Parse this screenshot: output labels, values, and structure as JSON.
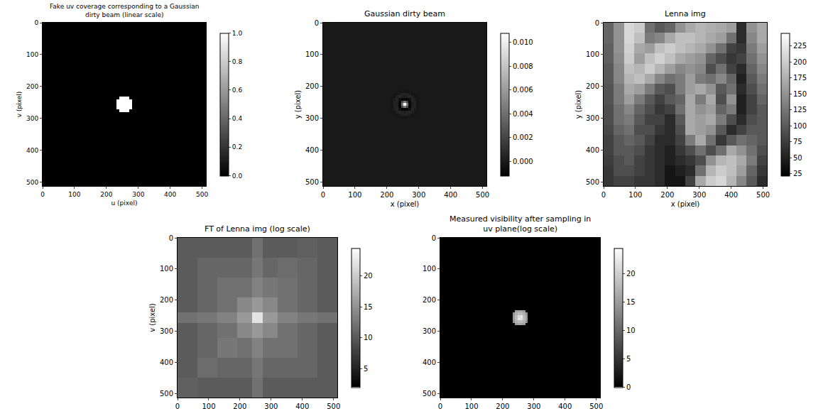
{
  "chart_data": [
    {
      "type": "heatmap",
      "title": "Fake uv coverage corresponding to a Gaussian dirty beam (linear scale)",
      "x_label": "u (pixel)",
      "y_label": "v (pixel)",
      "color": "gray",
      "xlim": [
        0,
        512
      ],
      "ylim": [
        512,
        0
      ],
      "xticks": [
        0,
        100,
        200,
        300,
        400,
        500
      ],
      "yticks": [
        0,
        100,
        200,
        300,
        400,
        500
      ],
      "x": [
        0,
        232,
        240,
        248,
        256,
        264,
        272,
        280,
        512
      ],
      "y": [
        0,
        232,
        240,
        248,
        256,
        264,
        272,
        280,
        512
      ],
      "z": [
        [
          0,
          0,
          0,
          0,
          0,
          0,
          0,
          0
        ],
        [
          0,
          0,
          1,
          1,
          1,
          1,
          0,
          0
        ],
        [
          0,
          1,
          1,
          1,
          1,
          1,
          1,
          0
        ],
        [
          0,
          1,
          1,
          1,
          1,
          1,
          1,
          0
        ],
        [
          0,
          1,
          1,
          1,
          1,
          1,
          1,
          0
        ],
        [
          0,
          1,
          1,
          1,
          1,
          1,
          1,
          0
        ],
        [
          0,
          0,
          1,
          1,
          1,
          1,
          0,
          0
        ],
        [
          0,
          0,
          0,
          0,
          0,
          0,
          0,
          0
        ]
      ],
      "zlim": [
        0,
        1
      ],
      "zticks": [
        {
          "value": 0,
          "label": "0.0"
        },
        0.2,
        0.4,
        0.6,
        0.8,
        {
          "value": 1,
          "label": "1.0"
        }
      ]
    },
    {
      "type": "heatmap",
      "title": "Gaussian dirty beam",
      "x_label": "x (pixel)",
      "y_label": "y (pixel)",
      "color": "gray",
      "xlim": [
        0,
        512
      ],
      "ylim": [
        512,
        0
      ],
      "xticks": [
        0,
        100,
        200,
        300,
        400,
        500
      ],
      "yticks": [
        0,
        100,
        200,
        300,
        400,
        500
      ],
      "x": [
        0,
        212,
        220,
        228,
        236,
        244,
        252,
        260,
        268,
        276,
        284,
        292,
        300,
        512
      ],
      "y": [
        0,
        212,
        220,
        228,
        236,
        244,
        252,
        260,
        268,
        276,
        284,
        292,
        300,
        512
      ],
      "z": [
        [
          0,
          0,
          0,
          0,
          0,
          0,
          0,
          0,
          0,
          0,
          0,
          0,
          0
        ],
        [
          0,
          0,
          0,
          -0.0001,
          -0.0001,
          -0.0002,
          -0.0002,
          -0.0002,
          -0.0001,
          -0.0001,
          0,
          0,
          0
        ],
        [
          0,
          0,
          -0.0001,
          -0.0002,
          0.0001,
          0.0004,
          0.0005,
          0.0004,
          0.0001,
          -0.0002,
          -0.0001,
          0,
          0
        ],
        [
          0,
          -0.0001,
          -0.0002,
          0.0003,
          0.0006,
          0.0004,
          0.0002,
          0.0004,
          0.0006,
          0.0003,
          -0.0002,
          -0.0001,
          0
        ],
        [
          0,
          -0.0001,
          0.0001,
          0.0006,
          -0.0004,
          -0.0009,
          -0.0008,
          -0.0009,
          -0.0004,
          0.0006,
          0.0001,
          -0.0001,
          0
        ],
        [
          0,
          -0.0002,
          0.0004,
          0.0004,
          -0.0009,
          0.0022,
          0.0045,
          0.0022,
          -0.0009,
          0.0004,
          0.0004,
          -0.0002,
          0
        ],
        [
          0,
          -0.0002,
          0.0005,
          0.0002,
          -0.0008,
          0.0045,
          0.0105,
          0.0045,
          -0.0008,
          0.0002,
          0.0005,
          -0.0002,
          0
        ],
        [
          0,
          -0.0002,
          0.0004,
          0.0004,
          -0.0009,
          0.0022,
          0.0045,
          0.0022,
          -0.0009,
          0.0004,
          0.0004,
          -0.0002,
          0
        ],
        [
          0,
          -0.0001,
          0.0001,
          0.0006,
          -0.0004,
          -0.0009,
          -0.0008,
          -0.0009,
          -0.0004,
          0.0006,
          0.0001,
          -0.0001,
          0
        ],
        [
          0,
          -0.0001,
          -0.0002,
          0.0003,
          0.0006,
          0.0004,
          0.0002,
          0.0004,
          0.0006,
          0.0003,
          -0.0002,
          -0.0001,
          0
        ],
        [
          0,
          0,
          -0.0001,
          -0.0002,
          0.0001,
          0.0004,
          0.0005,
          0.0004,
          0.0001,
          -0.0002,
          -0.0001,
          0,
          0
        ],
        [
          0,
          0,
          0,
          -0.0001,
          -0.0001,
          -0.0002,
          -0.0002,
          -0.0002,
          -0.0001,
          -0.0001,
          0,
          0,
          0
        ],
        [
          0,
          0,
          0,
          0,
          0,
          0,
          0,
          0,
          0,
          0,
          0,
          0,
          0
        ]
      ],
      "zlim": [
        -0.0012,
        0.0108
      ],
      "zticks": [
        {
          "value": 0,
          "label": "0.000"
        },
        {
          "value": 0.002,
          "label": "0.002"
        },
        {
          "value": 0.004,
          "label": "0.004"
        },
        {
          "value": 0.006,
          "label": "0.006"
        },
        {
          "value": 0.008,
          "label": "0.008"
        },
        {
          "value": 0.01,
          "label": "0.010"
        }
      ]
    },
    {
      "type": "heatmap",
      "title": "Lenna img",
      "x_label": "x (pixel)",
      "y_label": "y (pixel)",
      "color": "gray",
      "xlim": [
        0,
        512
      ],
      "ylim": [
        512,
        0
      ],
      "xticks": [
        0,
        100,
        200,
        300,
        400,
        500
      ],
      "yticks": [
        0,
        100,
        200,
        300,
        400,
        500
      ],
      "x": [
        0,
        32,
        64,
        96,
        128,
        160,
        192,
        224,
        256,
        288,
        320,
        352,
        384,
        416,
        448,
        480,
        512
      ],
      "y": [
        0,
        32,
        64,
        96,
        128,
        160,
        192,
        224,
        256,
        288,
        320,
        352,
        384,
        416,
        448,
        480,
        512
      ],
      "z": [
        [
          110,
          150,
          210,
          200,
          120,
          100,
          110,
          150,
          170,
          180,
          175,
          170,
          160,
          60,
          150,
          170
        ],
        [
          110,
          150,
          210,
          190,
          130,
          140,
          170,
          190,
          190,
          180,
          170,
          160,
          120,
          60,
          140,
          170
        ],
        [
          105,
          150,
          205,
          170,
          160,
          190,
          200,
          190,
          180,
          170,
          150,
          120,
          80,
          70,
          130,
          160
        ],
        [
          105,
          145,
          200,
          160,
          190,
          205,
          190,
          170,
          160,
          150,
          110,
          90,
          70,
          80,
          120,
          150
        ],
        [
          100,
          140,
          190,
          180,
          200,
          180,
          160,
          140,
          150,
          140,
          90,
          120,
          80,
          60,
          110,
          140
        ],
        [
          100,
          140,
          180,
          190,
          170,
          140,
          120,
          130,
          160,
          130,
          120,
          140,
          110,
          50,
          100,
          130
        ],
        [
          95,
          130,
          170,
          160,
          130,
          100,
          90,
          130,
          160,
          170,
          150,
          100,
          120,
          60,
          90,
          120
        ],
        [
          95,
          130,
          160,
          130,
          100,
          80,
          100,
          110,
          170,
          130,
          170,
          90,
          150,
          50,
          80,
          110
        ],
        [
          90,
          120,
          140,
          110,
          90,
          70,
          80,
          120,
          170,
          150,
          160,
          110,
          130,
          50,
          80,
          100
        ],
        [
          90,
          120,
          130,
          100,
          80,
          80,
          60,
          100,
          170,
          160,
          170,
          130,
          90,
          60,
          90,
          100
        ],
        [
          85,
          110,
          120,
          90,
          90,
          70,
          60,
          90,
          170,
          160,
          150,
          100,
          60,
          80,
          100,
          100
        ],
        [
          80,
          100,
          110,
          100,
          80,
          60,
          60,
          80,
          130,
          170,
          120,
          70,
          100,
          120,
          110,
          100
        ],
        [
          80,
          100,
          100,
          90,
          70,
          60,
          50,
          70,
          90,
          120,
          90,
          120,
          170,
          150,
          120,
          90
        ],
        [
          75,
          90,
          100,
          80,
          70,
          60,
          50,
          60,
          70,
          90,
          150,
          180,
          190,
          170,
          130,
          80
        ],
        [
          70,
          90,
          90,
          80,
          70,
          60,
          40,
          50,
          60,
          120,
          180,
          200,
          190,
          160,
          110,
          70
        ],
        [
          70,
          80,
          80,
          70,
          70,
          60,
          40,
          40,
          80,
          170,
          200,
          210,
          180,
          140,
          100,
          60
        ]
      ],
      "zlim": [
        22,
        245
      ],
      "zticks": [
        25,
        50,
        75,
        100,
        125,
        150,
        175,
        200,
        225
      ]
    },
    {
      "type": "heatmap",
      "title": "FT of Lenna img (log scale)",
      "y_label": "v (pixel)",
      "color": "gray",
      "xlim": [
        0,
        512
      ],
      "ylim": [
        512,
        0
      ],
      "xticks": [
        0,
        100,
        200,
        300,
        400,
        500
      ],
      "yticks": [
        0,
        100,
        200,
        300,
        400,
        500
      ],
      "x": [
        0,
        64,
        128,
        192,
        240,
        272,
        320,
        384,
        448,
        512
      ],
      "y": [
        0,
        64,
        128,
        192,
        240,
        272,
        320,
        384,
        448,
        512
      ],
      "z": [
        [
          10,
          10,
          10,
          10,
          12,
          10,
          10,
          10.5,
          10
        ],
        [
          10,
          11,
          11,
          11,
          12.5,
          11,
          11.5,
          11,
          10
        ],
        [
          10,
          11,
          12,
          12,
          13.5,
          12.5,
          12,
          11,
          10
        ],
        [
          10,
          11,
          12,
          14,
          15.5,
          14,
          12,
          11,
          10
        ],
        [
          12,
          12.5,
          13.5,
          15.5,
          22,
          15.5,
          13.5,
          12.5,
          12
        ],
        [
          10,
          11,
          12,
          14,
          15.5,
          14,
          12,
          11,
          10
        ],
        [
          10,
          11,
          12.5,
          12,
          13.5,
          12,
          12,
          11,
          10
        ],
        [
          10,
          11.5,
          11,
          11,
          12.5,
          11,
          11,
          11,
          10
        ],
        [
          10.5,
          10,
          10,
          10,
          12,
          10,
          10,
          10,
          10
        ]
      ],
      "zlim": [
        2,
        24.5
      ],
      "zticks": [
        5,
        10,
        15,
        20
      ]
    },
    {
      "type": "heatmap",
      "title": "Measured visibility after sampling in uv plane(log scale)",
      "color": "gray",
      "xlim": [
        0,
        512
      ],
      "ylim": [
        512,
        0
      ],
      "xticks": [
        0,
        100,
        200,
        300,
        400,
        500
      ],
      "yticks": [
        0,
        100,
        200,
        300,
        400,
        500
      ],
      "x": [
        0,
        232,
        240,
        248,
        256,
        264,
        272,
        280,
        512
      ],
      "y": [
        0,
        232,
        240,
        248,
        256,
        264,
        272,
        280,
        512
      ],
      "z": [
        [
          0,
          0,
          0,
          0,
          0,
          0,
          0,
          0
        ],
        [
          0,
          0,
          15,
          16,
          16,
          15,
          0,
          0
        ],
        [
          0,
          14,
          17,
          18,
          18,
          17,
          14,
          0
        ],
        [
          0,
          15,
          18,
          21,
          22,
          18,
          15,
          0
        ],
        [
          0,
          15,
          18,
          22,
          21,
          18,
          15,
          0
        ],
        [
          0,
          14,
          17,
          18,
          18,
          17,
          14,
          0
        ],
        [
          0,
          0,
          15,
          16,
          16,
          15,
          0,
          0
        ],
        [
          0,
          0,
          0,
          0,
          0,
          0,
          0,
          0
        ]
      ],
      "zlim": [
        0,
        24.5
      ],
      "zticks": [
        0,
        5,
        10,
        15,
        20
      ]
    }
  ]
}
